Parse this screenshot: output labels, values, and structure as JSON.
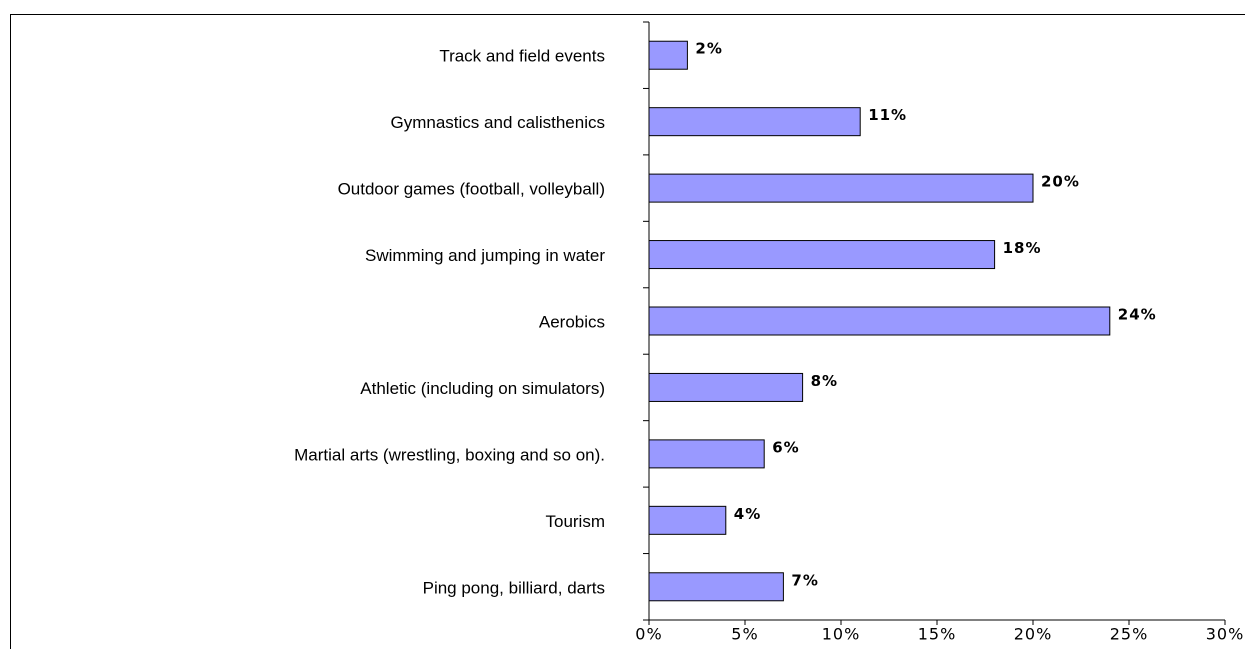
{
  "chart_data": {
    "type": "bar",
    "orientation": "horizontal",
    "categories": [
      "Track and field events",
      "Gymnastics and calisthenics",
      "Outdoor games (football, volleyball)",
      "Swimming and jumping in water",
      "Aerobics",
      "Athletic (including on simulators)",
      "Martial arts (wrestling, boxing and so on).",
      "Tourism",
      "Ping pong, billiard, darts"
    ],
    "values": [
      2,
      11,
      20,
      18,
      24,
      8,
      6,
      4,
      7
    ],
    "value_labels": [
      "2%",
      "11%",
      "20%",
      "18%",
      "24%",
      "8%",
      "6%",
      "4%",
      "7%"
    ],
    "color": "#9999ff",
    "xlim": [
      0,
      30
    ],
    "xticks": [
      {
        "value": 0,
        "label": "0%"
      },
      {
        "value": 5,
        "label": "5%"
      },
      {
        "value": 10,
        "label": "10%"
      },
      {
        "value": 15,
        "label": "15%"
      },
      {
        "value": 20,
        "label": "20%"
      },
      {
        "value": 25,
        "label": "25%"
      },
      {
        "value": 30,
        "label": "30%"
      }
    ],
    "grid": false
  }
}
